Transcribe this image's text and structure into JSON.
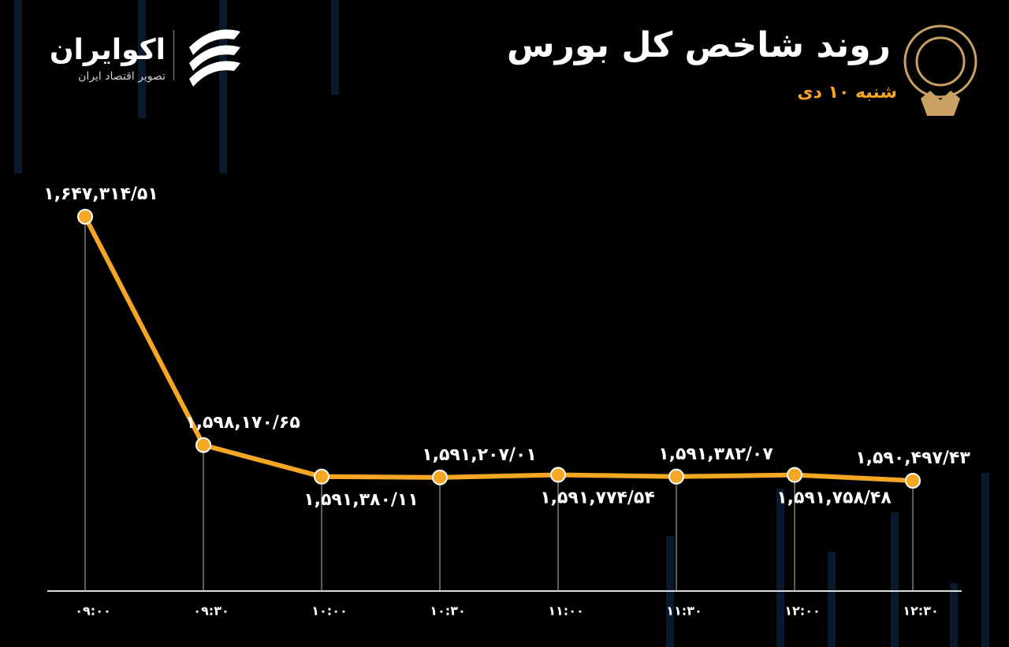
{
  "brand": {
    "name": "اکوایران",
    "tagline": "تصویر اقتصاد ایران"
  },
  "chart_data": {
    "type": "line",
    "title": "روند شاخص کل بورس",
    "subtitle": "شنبه ۱۰ دی",
    "categories": [
      "۰۹:۰۰",
      "۰۹:۳۰",
      "۱۰:۰۰",
      "۱۰:۳۰",
      "۱۱:۰۰",
      "۱۱:۳۰",
      "۱۲:۰۰",
      "۱۲:۳۰"
    ],
    "series": [
      {
        "color": "#f5a623",
        "values": [
          1647314.51,
          1598170.65,
          1591380.11,
          1591207.01,
          1591774.54,
          1591382.07,
          1591758.48,
          1590497.43
        ],
        "value_labels": [
          "۱,۶۴۷,۳۱۴/۵۱",
          "۱,۵۹۸,۱۷۰/۶۵",
          "۱,۵۹۱,۳۸۰/۱۱",
          "۱,۵۹۱,۲۰۷/۰۱",
          "۱,۵۹۱,۷۷۴/۵۴",
          "۱,۵۹۱,۳۸۲/۰۷",
          "۱,۵۹۱,۷۵۸/۴۸",
          "۱,۵۹۰,۴۹۷/۴۳"
        ]
      }
    ]
  }
}
